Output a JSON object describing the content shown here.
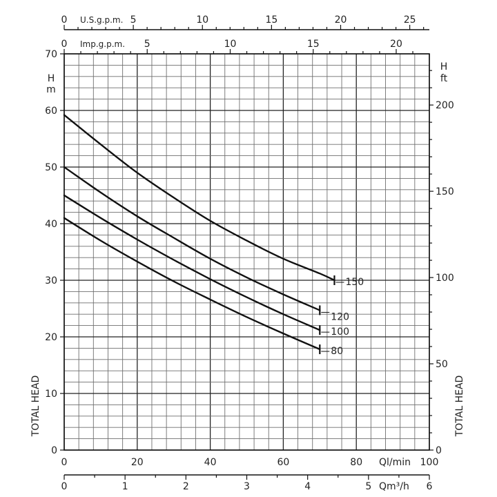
{
  "chart_data": {
    "type": "line",
    "title": "",
    "xlabel": "Ql/min",
    "ylabel": "TOTAL HEAD",
    "xlim": [
      0,
      100
    ],
    "ylim": [
      0,
      70
    ],
    "x_ticks": [
      "0",
      "20",
      "40",
      "60",
      "80",
      "100"
    ],
    "y_ticks": [
      "0",
      "10",
      "20",
      "30",
      "40",
      "50",
      "60",
      "70"
    ],
    "y_unit_left_top": "H",
    "y_unit_left_bottom": "m",
    "right_axis": {
      "unit_top": "H",
      "unit_bottom": "ft",
      "ticks": [
        {
          "label": "0",
          "value": 0
        },
        {
          "label": "50",
          "value": 50
        },
        {
          "label": "100",
          "value": 100
        },
        {
          "label": "150",
          "value": 150
        },
        {
          "label": "200",
          "value": 200
        }
      ],
      "label": "TOTAL HEAD"
    },
    "bottom_axis_2": {
      "unit": "Qm³/h",
      "ticks": [
        {
          "label": "0",
          "value": 0
        },
        {
          "label": "1",
          "value": 1
        },
        {
          "label": "2",
          "value": 2
        },
        {
          "label": "3",
          "value": 3
        },
        {
          "label": "4",
          "value": 4
        },
        {
          "label": "5",
          "value": 5
        },
        {
          "label": "6",
          "value": 6
        }
      ]
    },
    "top_axis_us": {
      "label": "U.S.g.p.m.",
      "ticks": [
        {
          "label": "0",
          "value": 0
        },
        {
          "label": "5",
          "value": 5
        },
        {
          "label": "10",
          "value": 10
        },
        {
          "label": "15",
          "value": 15
        },
        {
          "label": "20",
          "value": 20
        },
        {
          "label": "25",
          "value": 25
        }
      ]
    },
    "top_axis_imp": {
      "label": "Imp.g.p.m.",
      "ticks": [
        {
          "label": "0",
          "value": 0
        },
        {
          "label": "5",
          "value": 5
        },
        {
          "label": "10",
          "value": 10
        },
        {
          "label": "15",
          "value": 15
        },
        {
          "label": "20",
          "value": 20
        }
      ]
    },
    "grid": true,
    "series": [
      {
        "name": "150",
        "x": [
          0,
          10,
          20,
          30,
          40,
          50,
          60,
          70,
          74
        ],
        "y": [
          59.2,
          54.0,
          49.0,
          44.6,
          40.5,
          37.0,
          33.8,
          31.2,
          30.0
        ]
      },
      {
        "name": "120",
        "x": [
          0,
          10,
          20,
          30,
          40,
          50,
          60,
          70
        ],
        "y": [
          50.0,
          45.5,
          41.3,
          37.5,
          33.8,
          30.5,
          27.5,
          24.7
        ]
      },
      {
        "name": "100",
        "x": [
          0,
          10,
          20,
          30,
          40,
          50,
          60,
          70
        ],
        "y": [
          45.0,
          41.0,
          37.2,
          33.6,
          30.2,
          27.0,
          24.0,
          21.2
        ]
      },
      {
        "name": "80",
        "x": [
          0,
          10,
          20,
          30,
          40,
          50,
          60,
          70
        ],
        "y": [
          41.0,
          37.0,
          33.3,
          29.8,
          26.6,
          23.5,
          20.6,
          17.8
        ]
      }
    ]
  }
}
